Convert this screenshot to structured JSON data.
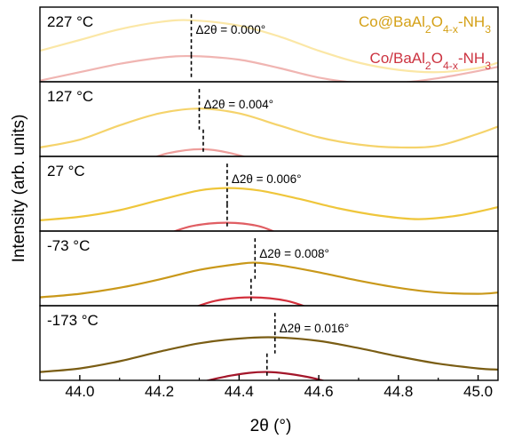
{
  "chart_data": {
    "type": "line",
    "xlabel": "2θ (°)",
    "ylabel": "Intensity (arb. units)",
    "xlim": [
      43.9,
      45.05
    ],
    "xticks": [
      44.0,
      44.2,
      44.4,
      44.6,
      44.8,
      45.0
    ],
    "xtick_labels": [
      "44.0",
      "44.2",
      "44.4",
      "44.6",
      "44.8",
      "45.0"
    ],
    "grid": false,
    "legend": {
      "placement": "top-right",
      "entries": [
        {
          "name": "Co@BaAl2O4-x-NH3",
          "color": "#D4A016"
        },
        {
          "name": "Co/BaAl2O4-x-NH3",
          "color": "#CC3340"
        }
      ]
    },
    "panels": [
      {
        "temperature": "227 °C",
        "shift_label": "Δ2θ = 0.000°",
        "series": [
          {
            "name": "Co@BaAl2O4-x-NH3",
            "color": "#FBE7A6",
            "peak_x": 44.28,
            "x": [
              43.9,
              44.0,
              44.1,
              44.2,
              44.28,
              44.4,
              44.5,
              44.6,
              44.7,
              44.8,
              44.9,
              45.0,
              45.05
            ],
            "y": [
              0.42,
              0.6,
              0.78,
              0.9,
              0.93,
              0.84,
              0.66,
              0.42,
              0.22,
              0.1,
              0.06,
              0.13,
              0.22
            ]
          },
          {
            "name": "Co/BaAl2O4-x-NH3",
            "color": "#F0B5B2",
            "peak_x": 44.28,
            "x": [
              43.9,
              44.0,
              44.1,
              44.2,
              44.28,
              44.4,
              44.5,
              44.6,
              44.7,
              44.8,
              44.9,
              45.0,
              45.05
            ],
            "y": [
              -0.08,
              0.06,
              0.2,
              0.3,
              0.33,
              0.27,
              0.13,
              -0.03,
              -0.12,
              -0.12,
              -0.04,
              0.08,
              0.15
            ]
          }
        ]
      },
      {
        "temperature": "127 °C",
        "shift_label": "Δ2θ = 0.004°",
        "series": [
          {
            "name": "Co@BaAl2O4-x-NH3",
            "color": "#F5D36B",
            "peak_x": 44.3,
            "x": [
              43.9,
              44.0,
              44.1,
              44.2,
              44.3,
              44.4,
              44.5,
              44.6,
              44.7,
              44.8,
              44.9,
              45.0,
              45.05
            ],
            "y": [
              0.05,
              0.18,
              0.42,
              0.62,
              0.7,
              0.62,
              0.42,
              0.22,
              0.1,
              0.05,
              0.08,
              0.28,
              0.4
            ]
          },
          {
            "name": "Co/BaAl2O4-x-NH3",
            "color": "#EE9E9B",
            "peak_x": 44.31,
            "x": [
              44.07,
              44.15,
              44.22,
              44.31,
              44.4,
              44.47,
              44.55
            ],
            "y": [
              -0.45,
              -0.22,
              -0.05,
              0.02,
              -0.08,
              -0.25,
              -0.45
            ]
          }
        ]
      },
      {
        "temperature": "27 °C",
        "shift_label": "Δ2θ = 0.006°",
        "series": [
          {
            "name": "Co@BaAl2O4-x-NH3",
            "color": "#EFC63B",
            "peak_x": 44.37,
            "x": [
              43.9,
              44.0,
              44.1,
              44.2,
              44.3,
              44.37,
              44.45,
              44.55,
              44.65,
              44.75,
              44.85,
              44.95,
              45.05
            ],
            "y": [
              0.08,
              0.14,
              0.25,
              0.42,
              0.58,
              0.62,
              0.58,
              0.44,
              0.28,
              0.16,
              0.1,
              0.16,
              0.3
            ]
          },
          {
            "name": "Co/BaAl2O4-x-NH3",
            "color": "#E05E63",
            "peak_x": 44.37,
            "x": [
              44.13,
              44.2,
              44.28,
              44.37,
              44.45,
              44.52,
              44.6
            ],
            "y": [
              -0.4,
              -0.2,
              -0.02,
              0.04,
              -0.02,
              -0.2,
              -0.4
            ]
          }
        ]
      },
      {
        "temperature": "-73 °C",
        "shift_label": "Δ2θ = 0.008°",
        "series": [
          {
            "name": "Co@BaAl2O4-x-NH3",
            "color": "#C9981A",
            "peak_x": 44.44,
            "x": [
              43.9,
              44.0,
              44.1,
              44.2,
              44.3,
              44.4,
              44.44,
              44.5,
              44.6,
              44.7,
              44.8,
              44.9,
              45.0,
              45.05
            ],
            "y": [
              0.04,
              0.1,
              0.2,
              0.34,
              0.5,
              0.6,
              0.62,
              0.58,
              0.46,
              0.32,
              0.2,
              0.12,
              0.1,
              0.12
            ]
          },
          {
            "name": "Co/BaAl2O4-x-NH3",
            "color": "#D3303C",
            "peak_x": 44.43,
            "x": [
              44.18,
              44.26,
              44.34,
              44.43,
              44.52,
              44.6,
              44.68
            ],
            "y": [
              -0.42,
              -0.2,
              -0.02,
              0.04,
              -0.02,
              -0.2,
              -0.42
            ]
          }
        ]
      },
      {
        "temperature": "-173 °C",
        "shift_label": "Δ2θ = 0.016°",
        "series": [
          {
            "name": "Co@BaAl2O4-x-NH3",
            "color": "#7A5D14",
            "peak_x": 44.49,
            "x": [
              43.9,
              44.0,
              44.1,
              44.2,
              44.3,
              44.4,
              44.49,
              44.6,
              44.7,
              44.8,
              44.9,
              45.0,
              45.05
            ],
            "y": [
              0.04,
              0.1,
              0.22,
              0.38,
              0.52,
              0.6,
              0.62,
              0.56,
              0.44,
              0.3,
              0.18,
              0.1,
              0.08
            ]
          },
          {
            "name": "Co/BaAl2O4-x-NH3",
            "color": "#A3162A",
            "peak_x": 44.47,
            "x": [
              44.19,
              44.28,
              44.38,
              44.47,
              44.57,
              44.66,
              44.75
            ],
            "y": [
              -0.42,
              -0.18,
              -0.02,
              0.04,
              -0.04,
              -0.2,
              -0.4
            ]
          }
        ]
      }
    ]
  }
}
